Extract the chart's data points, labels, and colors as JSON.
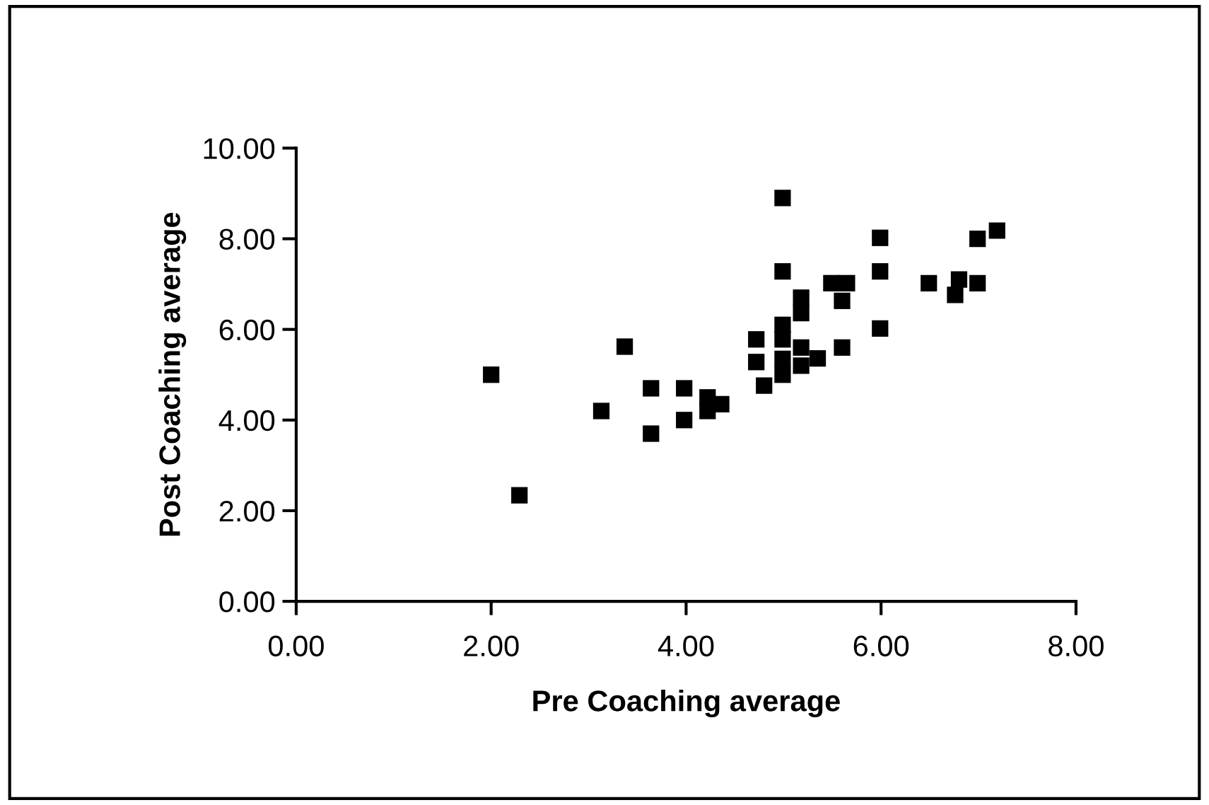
{
  "chart_data": {
    "type": "scatter",
    "xlabel": "Pre Coaching average",
    "ylabel": "Post Coaching average",
    "xlim": [
      0,
      8
    ],
    "ylim": [
      0,
      10
    ],
    "xticks": [
      {
        "value": 0,
        "label": "0.00"
      },
      {
        "value": 2,
        "label": "2.00"
      },
      {
        "value": 4,
        "label": "4.00"
      },
      {
        "value": 6,
        "label": "6.00"
      },
      {
        "value": 8,
        "label": "8.00"
      }
    ],
    "yticks": [
      {
        "value": 0,
        "label": "0.00"
      },
      {
        "value": 2,
        "label": "2.00"
      },
      {
        "value": 4,
        "label": "4.00"
      },
      {
        "value": 6,
        "label": "6.00"
      },
      {
        "value": 8,
        "label": "8.00"
      },
      {
        "value": 10,
        "label": "10.00"
      }
    ],
    "grid": false,
    "legend": false,
    "marker": "square",
    "series": [
      {
        "color": "#000000",
        "x": [
          2.0,
          2.29,
          3.13,
          3.37,
          3.64,
          3.64,
          3.98,
          3.98,
          4.22,
          4.22,
          4.36,
          4.99,
          5.99,
          6.99,
          7.19,
          4.99,
          5.99,
          5.49,
          5.65,
          6.49,
          6.8,
          6.99,
          6.76,
          5.18,
          5.18,
          5.6,
          4.99,
          4.72,
          4.99,
          5.18,
          5.6,
          5.99,
          4.72,
          4.99,
          5.35,
          5.18,
          4.99,
          4.8
        ],
        "values": [
          5.0,
          2.34,
          4.2,
          5.62,
          4.7,
          3.7,
          4.7,
          4.0,
          4.5,
          4.2,
          4.35,
          8.9,
          8.02,
          8.0,
          8.18,
          7.28,
          7.28,
          7.02,
          7.02,
          7.02,
          7.1,
          7.02,
          6.76,
          6.7,
          6.36,
          6.63,
          6.1,
          5.78,
          5.78,
          5.6,
          5.6,
          6.02,
          5.28,
          5.35,
          5.36,
          5.2,
          5.0,
          4.76
        ]
      }
    ]
  }
}
